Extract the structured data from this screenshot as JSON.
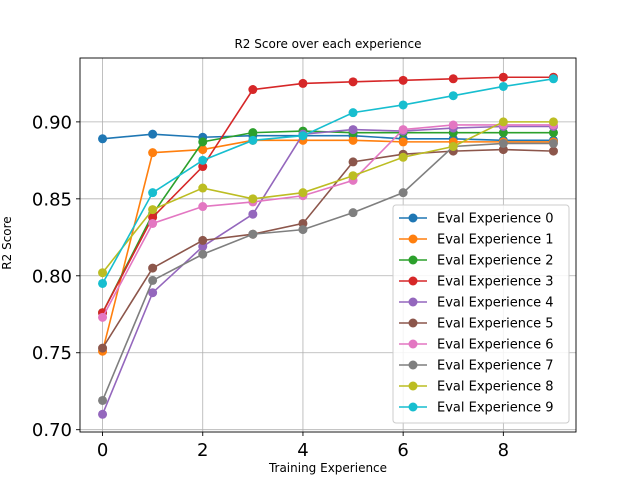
{
  "chart_data": {
    "type": "line",
    "title": "R2 Score over each experience",
    "xlabel": "Training Experience",
    "ylabel": "R2 Score",
    "xlim": [
      -0.45,
      9.45
    ],
    "ylim": [
      0.6985,
      0.9415
    ],
    "xticks": [
      0,
      2,
      4,
      6,
      8
    ],
    "xtick_labels": [
      "0",
      "2",
      "4",
      "6",
      "8"
    ],
    "yticks": [
      0.7,
      0.75,
      0.8,
      0.85,
      0.9
    ],
    "ytick_labels": [
      "0.70",
      "0.75",
      "0.80",
      "0.85",
      "0.90"
    ],
    "grid": true,
    "legend_position": "lower-right",
    "x": [
      0,
      1,
      2,
      3,
      4,
      5,
      6,
      7,
      8,
      9
    ],
    "series": [
      {
        "name": "Eval Experience 0",
        "color": "#1f77b4",
        "values": [
          0.889,
          0.892,
          0.89,
          0.891,
          0.891,
          0.891,
          0.889,
          0.889,
          0.888,
          0.888
        ]
      },
      {
        "name": "Eval Experience 1",
        "color": "#ff7f0e",
        "values": [
          0.751,
          0.88,
          0.882,
          0.888,
          0.888,
          0.888,
          0.887,
          0.887,
          0.887,
          0.887
        ]
      },
      {
        "name": "Eval Experience 2",
        "color": "#2ca02c",
        "values": [
          0.776,
          0.84,
          0.887,
          0.893,
          0.894,
          0.893,
          0.893,
          0.893,
          0.893,
          0.893
        ]
      },
      {
        "name": "Eval Experience 3",
        "color": "#d62728",
        "values": [
          0.776,
          0.838,
          0.871,
          0.921,
          0.925,
          0.926,
          0.927,
          0.928,
          0.929,
          0.929
        ]
      },
      {
        "name": "Eval Experience 4",
        "color": "#9467bd",
        "values": [
          0.71,
          0.789,
          0.819,
          0.84,
          0.892,
          0.895,
          0.894,
          0.896,
          0.897,
          0.897
        ]
      },
      {
        "name": "Eval Experience 5",
        "color": "#8c564b",
        "values": [
          0.753,
          0.805,
          0.823,
          0.827,
          0.834,
          0.874,
          0.879,
          0.881,
          0.882,
          0.881
        ]
      },
      {
        "name": "Eval Experience 6",
        "color": "#e377c2",
        "values": [
          0.773,
          0.834,
          0.845,
          0.848,
          0.852,
          0.862,
          0.895,
          0.898,
          0.898,
          0.898
        ]
      },
      {
        "name": "Eval Experience 7",
        "color": "#7f7f7f",
        "values": [
          0.719,
          0.797,
          0.814,
          0.827,
          0.83,
          0.841,
          0.854,
          0.884,
          0.886,
          0.886
        ]
      },
      {
        "name": "Eval Experience 8",
        "color": "#bcbd22",
        "values": [
          0.802,
          0.843,
          0.857,
          0.85,
          0.854,
          0.865,
          0.877,
          0.884,
          0.9,
          0.9
        ]
      },
      {
        "name": "Eval Experience 9",
        "color": "#17becf",
        "values": [
          0.795,
          0.854,
          0.875,
          0.888,
          0.891,
          0.906,
          0.911,
          0.917,
          0.923,
          0.928
        ]
      }
    ]
  }
}
